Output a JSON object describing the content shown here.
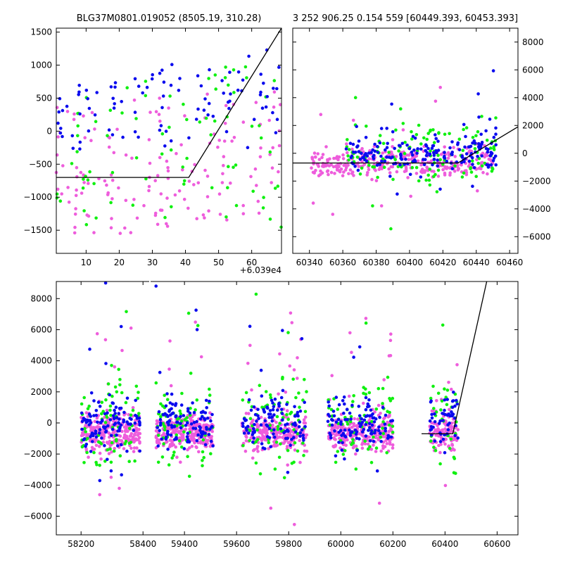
{
  "colors": {
    "blue": "#0a0aee",
    "green": "#10f010",
    "pink": "#ee5ddc",
    "model": "#000000"
  },
  "chart_data": [
    {
      "id": "top-left",
      "type": "scatter",
      "title": "BLG37M0801.019052 (8505.19, 310.28)",
      "xlim": [
        1,
        69
      ],
      "ylim": [
        -1850,
        1560
      ],
      "xticks": [
        "10",
        "20",
        "30",
        "40",
        "50",
        "60"
      ],
      "xtick_values": [
        10,
        20,
        30,
        40,
        50,
        60
      ],
      "yticks": [
        "−1500",
        "−1000",
        "−500",
        "0",
        "500",
        "1000",
        "1500"
      ],
      "ytick_values": [
        -1500,
        -1000,
        -500,
        0,
        500,
        1000,
        1500
      ],
      "x_offset_label": "+6.039e4",
      "series": [
        {
          "color": "blue",
          "x_range": [
            1,
            69
          ],
          "y_base": [
            -300,
            700
          ],
          "slope": 12,
          "n": 95
        },
        {
          "color": "green",
          "x_range": [
            1,
            69
          ],
          "y_base": [
            -1500,
            900
          ],
          "slope": 8,
          "n": 80
        },
        {
          "color": "pink",
          "x_range": [
            1,
            69
          ],
          "y_base": [
            -1600,
            400
          ],
          "slope": 6,
          "n": 150
        }
      ],
      "model": {
        "x": [
          1,
          41,
          69
        ],
        "y": [
          -700,
          -700,
          1560
        ]
      }
    },
    {
      "id": "top-right",
      "type": "scatter",
      "title": "3 252 906.25 0.154 559 [60449.393, 60453.393]",
      "xlim": [
        60330,
        60465
      ],
      "ylim": [
        -7200,
        9000
      ],
      "xticks": [
        "60340",
        "60360",
        "60380",
        "60400",
        "60420",
        "60440",
        "60460"
      ],
      "xtick_values": [
        60340,
        60360,
        60380,
        60400,
        60420,
        60440,
        60460
      ],
      "yticks": [
        "−6000",
        "−4000",
        "−2000",
        "0",
        "2000",
        "4000",
        "6000",
        "8000"
      ],
      "ytick_values": [
        -6000,
        -4000,
        -2000,
        0,
        2000,
        4000,
        6000,
        8000
      ],
      "series": [
        {
          "color": "blue",
          "x_range": [
            60362,
            60452
          ],
          "y_center": 100,
          "spread": 700,
          "n": 190
        },
        {
          "color": "green",
          "x_range": [
            60362,
            60452
          ],
          "y_center": -100,
          "spread": 1200,
          "n": 130
        },
        {
          "color": "pink",
          "x_range": [
            60341,
            60450
          ],
          "y_center": -700,
          "spread": 500,
          "n": 320
        }
      ],
      "model": {
        "x": [
          60330,
          60429,
          60465
        ],
        "y": [
          -700,
          -700,
          1900
        ]
      }
    },
    {
      "id": "bottom",
      "type": "scatter",
      "title": "",
      "ylim": [
        -7200,
        9100
      ],
      "xticks": [
        "58200",
        "58400",
        "59400",
        "59600",
        "59800",
        "60000",
        "60200",
        "60400",
        "60600"
      ],
      "xtick_values": [
        58200,
        58400,
        59400,
        59600,
        59800,
        60000,
        60200,
        60400,
        60600
      ],
      "yticks": [
        "−6000",
        "−4000",
        "−2000",
        "0",
        "2000",
        "4000",
        "6000",
        "8000"
      ],
      "ytick_values": [
        -6000,
        -4000,
        -2000,
        0,
        2000,
        4000,
        6000,
        8000
      ],
      "segments": [
        {
          "xlim": [
            58120,
            58420
          ],
          "clusters": [
            [
              58200,
              58390
            ]
          ]
        },
        {
          "xlim": [
            59270,
            60680
          ],
          "clusters": [
            [
              59290,
              59510
            ],
            [
              59620,
              59870
            ],
            [
              59950,
              60200
            ],
            [
              60340,
              60450
            ]
          ]
        }
      ],
      "series": [
        {
          "color": "blue",
          "y_center": 0,
          "spread": 800,
          "n_per_cluster": 110
        },
        {
          "color": "green",
          "y_center": 0,
          "spread": 1500,
          "n_per_cluster": 75
        },
        {
          "color": "pink",
          "y_center": -600,
          "spread": 550,
          "n_per_cluster": 260
        }
      ],
      "model": {
        "x": [
          60310,
          60430,
          60560
        ],
        "y": [
          -700,
          -700,
          9100
        ]
      }
    }
  ]
}
